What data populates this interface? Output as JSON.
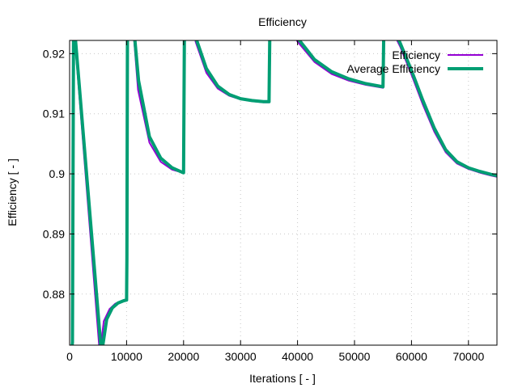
{
  "chart_data": {
    "type": "line",
    "title": "Efficiency",
    "xlabel": "Iterations [ - ]",
    "ylabel": "Efficiency [ - ]",
    "xlim": [
      0,
      75000
    ],
    "ylim": [
      0.8715,
      0.9222
    ],
    "xticks": [
      0,
      10000,
      20000,
      30000,
      40000,
      50000,
      60000,
      70000
    ],
    "xtick_labels": [
      "0",
      "10000",
      "20000",
      "30000",
      "40000",
      "50000",
      "60000",
      "70000"
    ],
    "yticks": [
      0.88,
      0.89,
      0.9,
      0.91,
      0.92
    ],
    "ytick_labels": [
      "0.88",
      "0.89",
      "0.9",
      "0.91",
      "0.92"
    ],
    "grid": true,
    "legend_position": "top-right",
    "series": [
      {
        "name": "Efficiency",
        "color": "#9400D3",
        "x": [
          0,
          300,
          400,
          600,
          700,
          5300,
          6000,
          7000,
          8000,
          9000,
          10000,
          10050,
          10100,
          11000,
          11100,
          12000,
          14000,
          16000,
          18000,
          19900,
          20000,
          20100,
          22000,
          22100,
          24000,
          26000,
          28000,
          30000,
          32000,
          34000,
          35000,
          35050,
          35100,
          38000,
          40000,
          43000,
          46000,
          49000,
          52000,
          55000,
          55050,
          55100,
          56000,
          57000,
          58000,
          60000,
          62000,
          64000,
          66000,
          68000,
          70000,
          72000,
          74000,
          75000
        ],
        "y": [
          0.87,
          0.87,
          0.873,
          0.925,
          0.925,
          0.87,
          0.8755,
          0.8775,
          0.8784,
          0.8788,
          0.879,
          0.888,
          0.925,
          0.925,
          0.925,
          0.914,
          0.9052,
          0.902,
          0.9007,
          0.9002,
          0.9002,
          0.925,
          0.925,
          0.922,
          0.9168,
          0.9142,
          0.913,
          0.9124,
          0.9121,
          0.9119,
          0.9119,
          0.918,
          0.925,
          0.925,
          0.922,
          0.9186,
          0.9166,
          0.9155,
          0.9148,
          0.9143,
          0.918,
          0.925,
          0.925,
          0.9231,
          0.9212,
          0.9165,
          0.9115,
          0.907,
          0.9036,
          0.9017,
          0.9008,
          0.9002,
          0.8997,
          0.8995
        ]
      },
      {
        "name": "Average Efficiency",
        "color": "#009E73",
        "x": [
          0,
          300,
          500,
          700,
          800,
          5600,
          6500,
          7500,
          8500,
          9500,
          10000,
          10050,
          10150,
          11100,
          11200,
          12100,
          14000,
          16000,
          18000,
          19900,
          20000,
          20150,
          22100,
          22200,
          24000,
          26000,
          28000,
          30000,
          32000,
          34000,
          35000,
          35050,
          35150,
          38100,
          40000,
          43000,
          46000,
          49000,
          52000,
          55000,
          55050,
          55150,
          56100,
          57000,
          58000,
          60000,
          62000,
          64000,
          66000,
          68000,
          70000,
          72000,
          74000,
          75000
        ],
        "y": [
          0.87,
          0.87,
          0.872,
          0.925,
          0.925,
          0.87,
          0.8758,
          0.8777,
          0.8785,
          0.8789,
          0.879,
          0.886,
          0.925,
          0.925,
          0.925,
          0.9155,
          0.9062,
          0.9026,
          0.901,
          0.9002,
          0.9002,
          0.925,
          0.925,
          0.9225,
          0.9175,
          0.9146,
          0.9132,
          0.9125,
          0.9122,
          0.912,
          0.912,
          0.917,
          0.925,
          0.925,
          0.9226,
          0.919,
          0.917,
          0.9158,
          0.915,
          0.9145,
          0.918,
          0.925,
          0.925,
          0.9236,
          0.9218,
          0.9172,
          0.9122,
          0.9076,
          0.904,
          0.902,
          0.901,
          0.9004,
          0.8999,
          0.8997
        ]
      }
    ]
  }
}
